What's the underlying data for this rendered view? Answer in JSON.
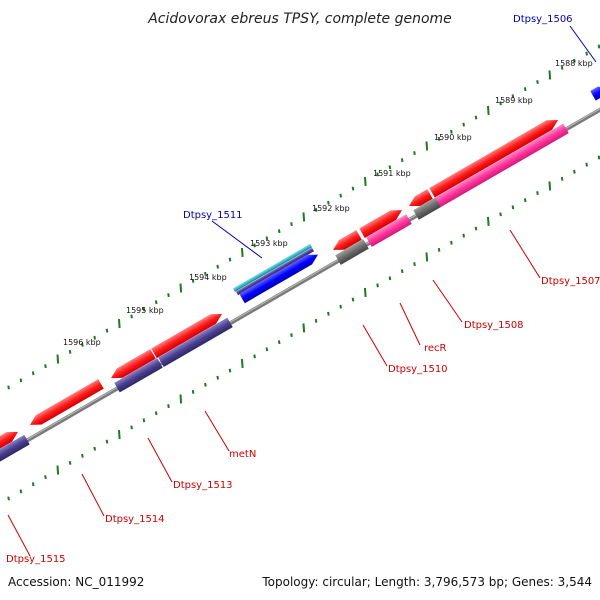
{
  "header": {
    "title": "Acidovorax ebreus TPSY, complete genome"
  },
  "footer": {
    "accession": "Accession: NC_011992",
    "topology": "Topology: circular; Length: 3,796,573 bp; Genes: 3,544"
  },
  "colors": {
    "background": "#ffffff",
    "backbone": "#808080",
    "tick": "#1e7a1e",
    "cds": "#ff1a1a",
    "cds_dark": "#4a3f8e",
    "pink": "#ff3399",
    "grey_feature": "#6b6b6b",
    "blue": "#0000ff",
    "cyan": "#33b8c8",
    "label_red": "#cc0000",
    "label_blue": "#0000aa"
  },
  "scale_labels": [
    "1588 kbp",
    "1589 kbp",
    "1590 kbp",
    "1591 kbp",
    "1592 kbp",
    "1593 kbp",
    "1594 kbp",
    "1595 kbp",
    "1596 kbp"
  ],
  "gene_labels": [
    {
      "name": "Dtpsy_1506",
      "color": "blue"
    },
    {
      "name": "Dtpsy_1507",
      "color": "red"
    },
    {
      "name": "Dtpsy_1508",
      "color": "red"
    },
    {
      "name": "recR",
      "color": "red"
    },
    {
      "name": "Dtpsy_1510",
      "color": "red"
    },
    {
      "name": "Dtpsy_1511",
      "color": "blue"
    },
    {
      "name": "metN",
      "color": "red"
    },
    {
      "name": "Dtpsy_1513",
      "color": "red"
    },
    {
      "name": "Dtpsy_1514",
      "color": "red"
    },
    {
      "name": "Dtpsy_1515",
      "color": "red"
    }
  ]
}
